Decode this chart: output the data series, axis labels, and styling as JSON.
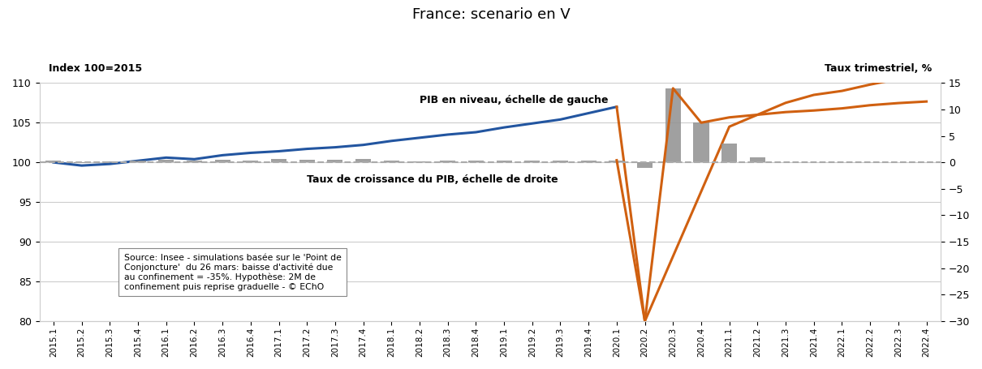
{
  "title": "France: scenario en V",
  "left_label": "Index 100=2015",
  "right_label": "Taux trimestriel, %",
  "source_text": "Source: Insee - simulations basée sur le 'Point de\nConjoncture'  du 26 mars: baisse d'activité due\nau confinement = -35%. Hypothèse: 2M de\nconfinement puis reprise graduelle - © EChO",
  "pib_label": "PIB en niveau, échelle de gauche",
  "taux_label": "Taux de croissance du PIB, échelle de droite",
  "left_ylim": [
    80,
    110
  ],
  "right_ylim": [
    -30,
    15
  ],
  "left_yticks": [
    80,
    85,
    90,
    95,
    100,
    105,
    110
  ],
  "right_yticks": [
    -30,
    -25,
    -20,
    -15,
    -10,
    -5,
    0,
    5,
    10,
    15
  ],
  "categories": [
    "2015.1",
    "2015.2",
    "2015.3",
    "2015.4",
    "2016.1",
    "2016.2",
    "2016.3",
    "2016.4",
    "2017.1",
    "2017.2",
    "2017.3",
    "2017.4",
    "2018.1",
    "2018.2",
    "2018.3",
    "2018.4",
    "2019.1",
    "2019.2",
    "2019.3",
    "2019.4",
    "2020.1",
    "2020.2",
    "2020.3",
    "2020.4",
    "2021.1",
    "2021.2",
    "2021.3",
    "2021.4",
    "2022.1",
    "2022.2",
    "2022.3",
    "2022.4"
  ],
  "pib_niveau_hist": [
    100.0,
    99.6,
    99.8,
    100.2,
    100.6,
    100.4,
    100.9,
    101.2,
    101.4,
    101.7,
    101.9,
    102.2,
    102.7,
    103.1,
    103.5,
    103.8,
    104.4,
    104.9,
    105.4,
    106.2,
    107.0
  ],
  "taux_hist_bars": [
    0.3,
    -0.1,
    0.2,
    0.4,
    0.5,
    0.3,
    0.5,
    0.3,
    0.6,
    0.5,
    0.5,
    0.6,
    0.4,
    0.2,
    0.3,
    0.4,
    0.3,
    0.3,
    0.3,
    0.4,
    0.4
  ],
  "scenario_bars_idx": [
    21,
    22,
    23,
    24,
    25
  ],
  "scenario_bars_val": [
    -1.0,
    14.0,
    7.5,
    3.5,
    1.0
  ],
  "orange_line_x": [
    20,
    21,
    22,
    23,
    24,
    25,
    26,
    27,
    28,
    29,
    30,
    31
  ],
  "orange_line_y": [
    0.4,
    -30.0,
    14.0,
    7.5,
    8.5,
    9.0,
    9.5,
    9.8,
    10.2,
    10.8,
    11.2,
    11.5
  ],
  "orange_level_x": [
    20,
    21,
    24,
    25,
    26,
    27,
    28,
    29,
    30,
    31
  ],
  "orange_level_y": [
    107.0,
    80.0,
    104.5,
    106.0,
    107.5,
    108.5,
    109.0,
    109.8,
    110.5,
    111.0
  ],
  "blue_color": "#2255A0",
  "orange_color": "#D06010",
  "bar_color": "#909090",
  "dashed_color": "#AAAAAA",
  "background_color": "#FFFFFF",
  "grid_color": "#CCCCCC"
}
